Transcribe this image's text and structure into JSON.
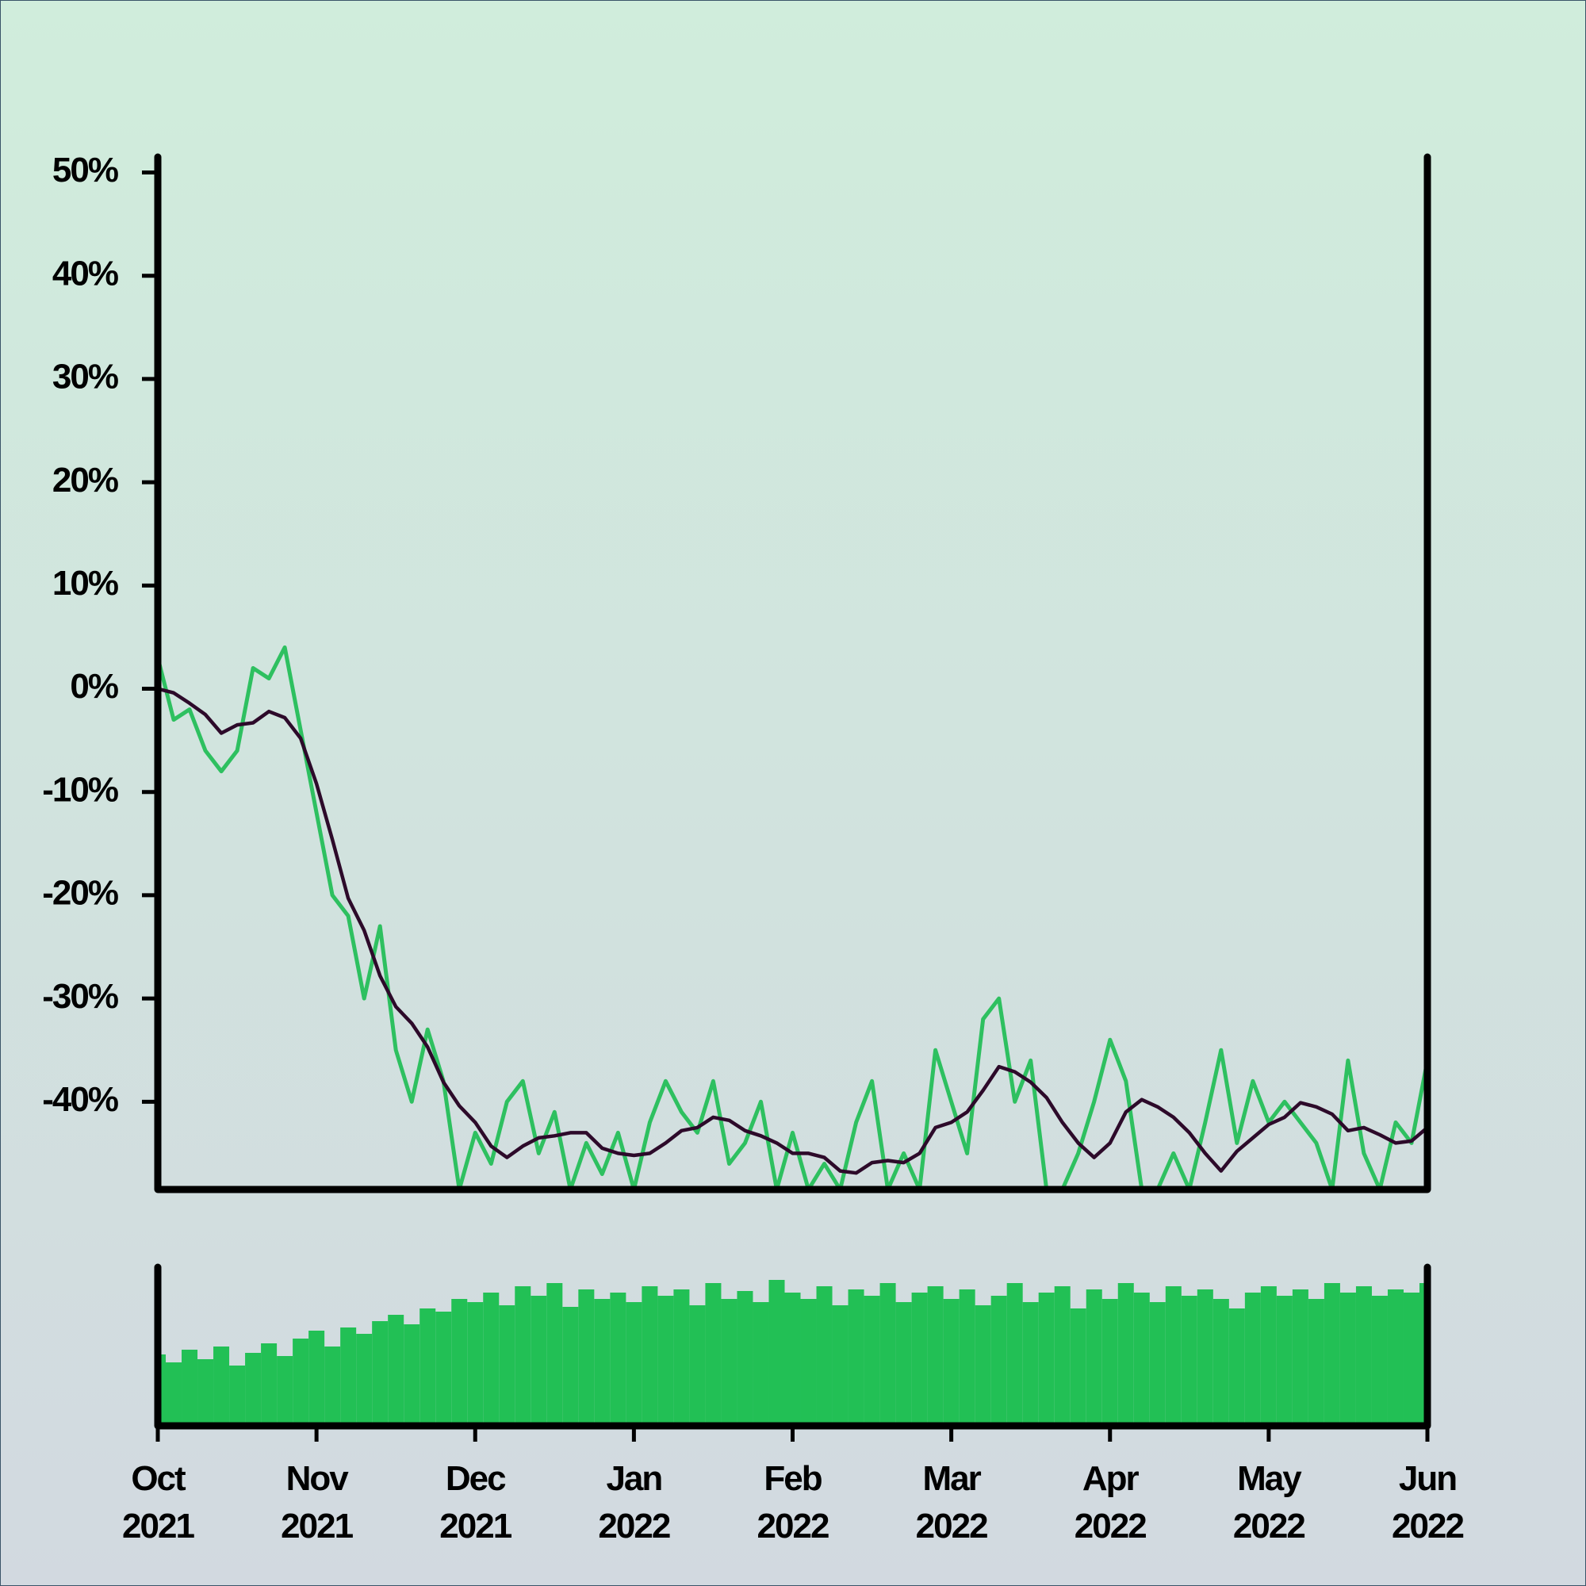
{
  "chart_data": {
    "type": "line",
    "x": [
      0,
      0.1,
      0.2,
      0.3,
      0.4,
      0.5,
      0.6,
      0.7,
      0.8,
      0.9,
      1,
      1.1,
      1.2,
      1.3,
      1.4,
      1.5,
      1.6,
      1.7,
      1.8,
      1.9,
      2,
      2.1,
      2.2,
      2.3,
      2.4,
      2.5,
      2.6,
      2.7,
      2.8,
      2.9,
      3,
      3.1,
      3.2,
      3.3,
      3.4,
      3.5,
      3.6,
      3.7,
      3.8,
      3.9,
      4,
      4.1,
      4.2,
      4.3,
      4.4,
      4.5,
      4.6,
      4.7,
      4.8,
      4.9,
      5,
      5.1,
      5.2,
      5.3,
      5.4,
      5.5,
      5.6,
      5.7,
      5.8,
      5.9,
      6,
      6.1,
      6.2,
      6.3,
      6.4,
      6.5,
      6.6,
      6.7,
      6.8,
      6.9,
      7,
      7.1,
      7.2,
      7.3,
      7.4,
      7.5,
      7.6,
      7.7,
      7.8,
      7.9,
      8
    ],
    "xlim": [
      0,
      8
    ],
    "xticks": [
      {
        "value": 0,
        "label": "Oct 2021"
      },
      {
        "value": 1,
        "label": "Nov 2021"
      },
      {
        "value": 2,
        "label": "Dec 2021"
      },
      {
        "value": 3,
        "label": "Jan 2022"
      },
      {
        "value": 4,
        "label": "Feb 2022"
      },
      {
        "value": 5,
        "label": "Mar 2022"
      },
      {
        "value": 6,
        "label": "Apr 2022"
      },
      {
        "value": 7,
        "label": "May 2022"
      },
      {
        "value": 8,
        "label": "Jun 2022"
      }
    ],
    "ylim": [
      -48.5,
      51.5
    ],
    "yticks": [
      {
        "value": 50,
        "label": "50%"
      },
      {
        "value": 40,
        "label": "40%"
      },
      {
        "value": 30,
        "label": "30%"
      },
      {
        "value": 20,
        "label": "20%"
      },
      {
        "value": 10,
        "label": "10%"
      },
      {
        "value": 0,
        "label": "0%"
      },
      {
        "value": -10,
        "label": "-10%"
      },
      {
        "value": -20,
        "label": "-20%"
      },
      {
        "value": -30,
        "label": "-30%"
      },
      {
        "value": -40,
        "label": "-40%"
      }
    ],
    "series": [
      {
        "color": "#2ec060",
        "values": [
          3,
          -3,
          -2,
          -6,
          -8,
          -6,
          2,
          1,
          4,
          -4,
          -12,
          -20,
          -22,
          -30,
          -23,
          -35,
          -40,
          -33,
          -38,
          -48.5,
          -43,
          -46,
          -40,
          -38,
          -45,
          -41,
          -48.5,
          -44,
          -47,
          -43,
          -48.5,
          -42,
          -38,
          -41,
          -43,
          -38,
          -46,
          -44,
          -40,
          -48.5,
          -43,
          -48.5,
          -46,
          -48.5,
          -42,
          -38,
          -48.5,
          -45,
          -48.5,
          -35,
          -40,
          -45,
          -32,
          -30,
          -40,
          -36,
          -48.5,
          -48.5,
          -45,
          -40,
          -34,
          -38,
          -48.5,
          -48.5,
          -45,
          -48.5,
          -42,
          -35,
          -44,
          -38,
          -42,
          -40,
          -42,
          -44,
          -48.5,
          -36,
          -45,
          -48.5,
          -42,
          -44,
          -36
        ]
      },
      {
        "color": "#2d0a2a",
        "values": [
          0,
          -0.4,
          -1.4,
          -2.5,
          -4.3,
          -3.5,
          -3.3,
          -2.2,
          -2.8,
          -4.8,
          -9.2,
          -14.6,
          -20.3,
          -23.4,
          -27.8,
          -30.8,
          -32.4,
          -34.7,
          -38.1,
          -40.4,
          -42,
          -44.3,
          -45.4,
          -44.3,
          -43.5,
          -43.3,
          -43,
          -43,
          -44.5,
          -45,
          -45.2,
          -45,
          -44,
          -42.8,
          -42.5,
          -41.5,
          -41.8,
          -42.8,
          -43.3,
          -44,
          -45,
          -45,
          -45.4,
          -46.7,
          -46.9,
          -45.9,
          -45.7,
          -45.9,
          -45,
          -42.5,
          -42,
          -41,
          -38.9,
          -36.6,
          -37.1,
          -38.1,
          -39.6,
          -42,
          -44,
          -45.4,
          -44,
          -41,
          -39.8,
          -40.5,
          -41.5,
          -43,
          -45,
          -46.7,
          -44.8,
          -43.5,
          -42.2,
          -41.5,
          -40.1,
          -40.5,
          -41.2,
          -42.8,
          -42.5,
          -43.2,
          -44,
          -43.8,
          -42.5
        ]
      }
    ],
    "volume": {
      "color": "#22c055",
      "ylim": [
        0,
        100
      ],
      "values": [
        45,
        40,
        48,
        42,
        50,
        38,
        46,
        52,
        44,
        55,
        60,
        50,
        62,
        58,
        66,
        70,
        64,
        74,
        72,
        80,
        78,
        84,
        76,
        88,
        82,
        90,
        75,
        86,
        80,
        84,
        78,
        88,
        82,
        86,
        76,
        90,
        80,
        85,
        78,
        92,
        84,
        80,
        88,
        76,
        86,
        82,
        90,
        78,
        84,
        88,
        80,
        86,
        76,
        82,
        90,
        78,
        84,
        88,
        74,
        86,
        80,
        90,
        84,
        78,
        88,
        82,
        86,
        80,
        74,
        84,
        88,
        82,
        86,
        80,
        90,
        84,
        88,
        82,
        86,
        84,
        90
      ]
    }
  }
}
